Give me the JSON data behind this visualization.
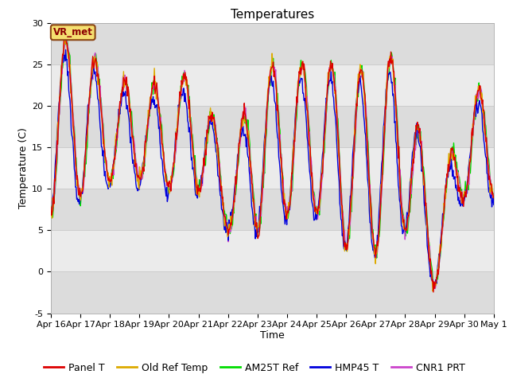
{
  "title": "Temperatures",
  "xlabel": "Time",
  "ylabel": "Temperature (C)",
  "ylim": [
    -5,
    30
  ],
  "y_ticks": [
    -5,
    0,
    5,
    10,
    15,
    20,
    25,
    30
  ],
  "x_tick_labels": [
    "Apr 16",
    "Apr 17",
    "Apr 18",
    "Apr 19",
    "Apr 20",
    "Apr 21",
    "Apr 22",
    "Apr 23",
    "Apr 24",
    "Apr 25",
    "Apr 26",
    "Apr 27",
    "Apr 28",
    "Apr 29",
    "Apr 30",
    "May 1"
  ],
  "legend_labels": [
    "Panel T",
    "Old Ref Temp",
    "AM25T Ref",
    "HMP45 T",
    "CNR1 PRT"
  ],
  "legend_colors": [
    "#dd0000",
    "#ddaa00",
    "#00dd00",
    "#0000dd",
    "#cc44cc"
  ],
  "annotation_text": "VR_met",
  "background_color": "#ffffff",
  "plot_bg_color": "#e8e8e8",
  "band_colors": [
    "#ffffff",
    "#e8e8e8"
  ],
  "grid_line_color": "#cccccc",
  "num_points": 720,
  "num_days": 15,
  "title_fontsize": 11,
  "axis_label_fontsize": 9,
  "tick_fontsize": 8,
  "legend_fontsize": 9
}
